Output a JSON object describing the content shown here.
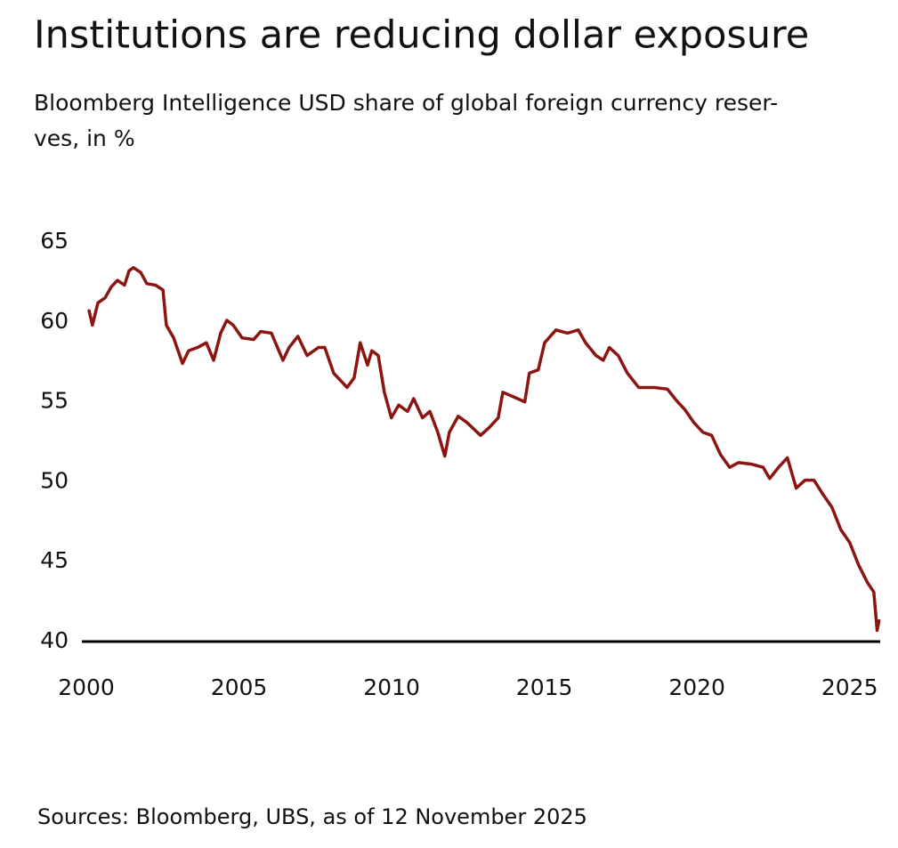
{
  "chart_data": {
    "type": "line",
    "title": "Institutions are reducing dollar exposure",
    "subtitle": [
      "Bloomberg Intelligence USD share of global foreign currency reser-",
      "ves, in %"
    ],
    "source": "Sources: Bloomberg, UBS, as of 12 November 2025",
    "x": [
      2000.09,
      2000.2,
      2000.38,
      2000.61,
      2000.82,
      2001.02,
      2001.25,
      2001.4,
      2001.54,
      2001.78,
      2001.98,
      2002.27,
      2002.51,
      2002.62,
      2002.86,
      2003.15,
      2003.35,
      2003.64,
      2003.93,
      2004.17,
      2004.4,
      2004.6,
      2004.81,
      2005.1,
      2005.48,
      2005.71,
      2006.06,
      2006.44,
      2006.64,
      2006.93,
      2007.23,
      2007.6,
      2007.81,
      2008.1,
      2008.54,
      2008.77,
      2008.97,
      2009.21,
      2009.35,
      2009.56,
      2009.76,
      2009.99,
      2010.23,
      2010.52,
      2010.72,
      2011.01,
      2011.25,
      2011.51,
      2011.74,
      2011.89,
      2012.18,
      2012.47,
      2012.91,
      2013.2,
      2013.49,
      2013.64,
      2014.01,
      2014.36,
      2014.51,
      2014.8,
      2015.01,
      2015.38,
      2015.76,
      2016.11,
      2016.35,
      2016.69,
      2016.93,
      2017.13,
      2017.42,
      2017.72,
      2018.09,
      2018.59,
      2019.03,
      2019.32,
      2019.61,
      2019.9,
      2020.19,
      2020.48,
      2020.77,
      2021.07,
      2021.36,
      2021.79,
      2022.17,
      2022.38,
      2022.67,
      2022.96,
      2023.25,
      2023.54,
      2023.83,
      2024.13,
      2024.42,
      2024.71,
      2025.0,
      2025.29,
      2025.58,
      2025.79,
      2025.9,
      2025.96
    ],
    "values": [
      60.7,
      59.8,
      61.2,
      61.5,
      62.2,
      62.6,
      62.3,
      63.2,
      63.4,
      63.1,
      62.4,
      62.3,
      62.0,
      59.8,
      59.0,
      57.4,
      58.2,
      58.4,
      58.7,
      57.6,
      59.3,
      60.1,
      59.8,
      59.0,
      58.9,
      59.4,
      59.3,
      57.6,
      58.4,
      59.1,
      57.9,
      58.4,
      58.4,
      56.8,
      55.9,
      56.5,
      58.7,
      57.3,
      58.2,
      57.9,
      55.6,
      54.0,
      54.8,
      54.4,
      55.2,
      54.0,
      54.4,
      53.1,
      51.6,
      53.1,
      54.1,
      53.7,
      52.9,
      53.4,
      54.0,
      55.6,
      55.3,
      55.0,
      56.8,
      57.0,
      58.7,
      59.5,
      59.3,
      59.5,
      58.7,
      57.9,
      57.6,
      58.4,
      57.9,
      56.8,
      55.9,
      55.9,
      55.8,
      55.1,
      54.5,
      53.7,
      53.1,
      52.9,
      51.7,
      50.9,
      51.2,
      51.1,
      50.9,
      50.2,
      50.9,
      51.5,
      49.6,
      50.1,
      50.1,
      49.2,
      48.4,
      47.0,
      46.2,
      44.8,
      43.7,
      43.1,
      40.7,
      41.3
    ],
    "color": "#8b1510",
    "xlim": [
      2000,
      2026
    ],
    "xticks": [
      2000,
      2005,
      2010,
      2015,
      2020,
      2025
    ],
    "ylim": [
      40,
      65
    ],
    "yticks": [
      40,
      45,
      50,
      55,
      60,
      65
    ]
  }
}
